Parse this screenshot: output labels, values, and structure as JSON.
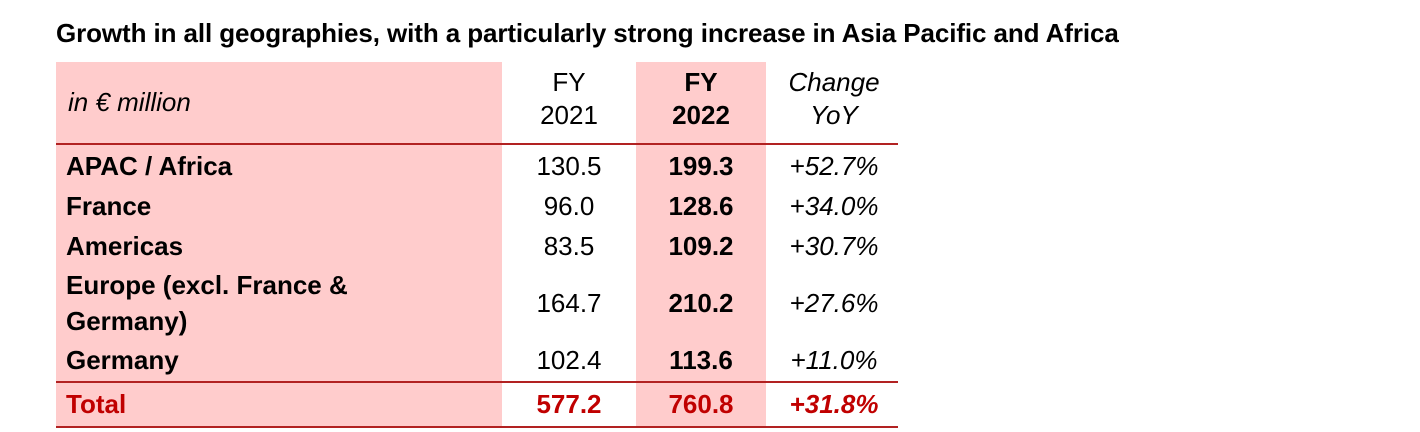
{
  "title": "Growth in all geographies, with a particularly strong increase in Asia Pacific and Africa",
  "header": {
    "unit_label": "in € million",
    "fy2021_line1": "FY",
    "fy2021_line2": "2021",
    "fy2022_line1": "FY",
    "fy2022_line2": "2022",
    "change_line1": "Change",
    "change_line2": "YoY"
  },
  "rows": [
    {
      "region": "APAC / Africa",
      "fy2021": "130.5",
      "fy2022": "199.3",
      "change": "+52.7%"
    },
    {
      "region": "France",
      "fy2021": "96.0",
      "fy2022": "128.6",
      "change": "+34.0%"
    },
    {
      "region": "Americas",
      "fy2021": "83.5",
      "fy2022": "109.2",
      "change": "+30.7%"
    },
    {
      "region_line1": "Europe (excl. France &",
      "region_line2": "Germany)",
      "fy2021": "164.7",
      "fy2022": "210.2",
      "change": "+27.6%"
    },
    {
      "region": "Germany",
      "fy2021": "102.4",
      "fy2022": "113.6",
      "change": "+11.0%"
    }
  ],
  "total": {
    "label": "Total",
    "fy2021": "577.2",
    "fy2022": "760.8",
    "change": "+31.8%"
  },
  "colors": {
    "highlight": "#ffcccc",
    "rule": "#b22222",
    "total_text": "#c00000"
  }
}
